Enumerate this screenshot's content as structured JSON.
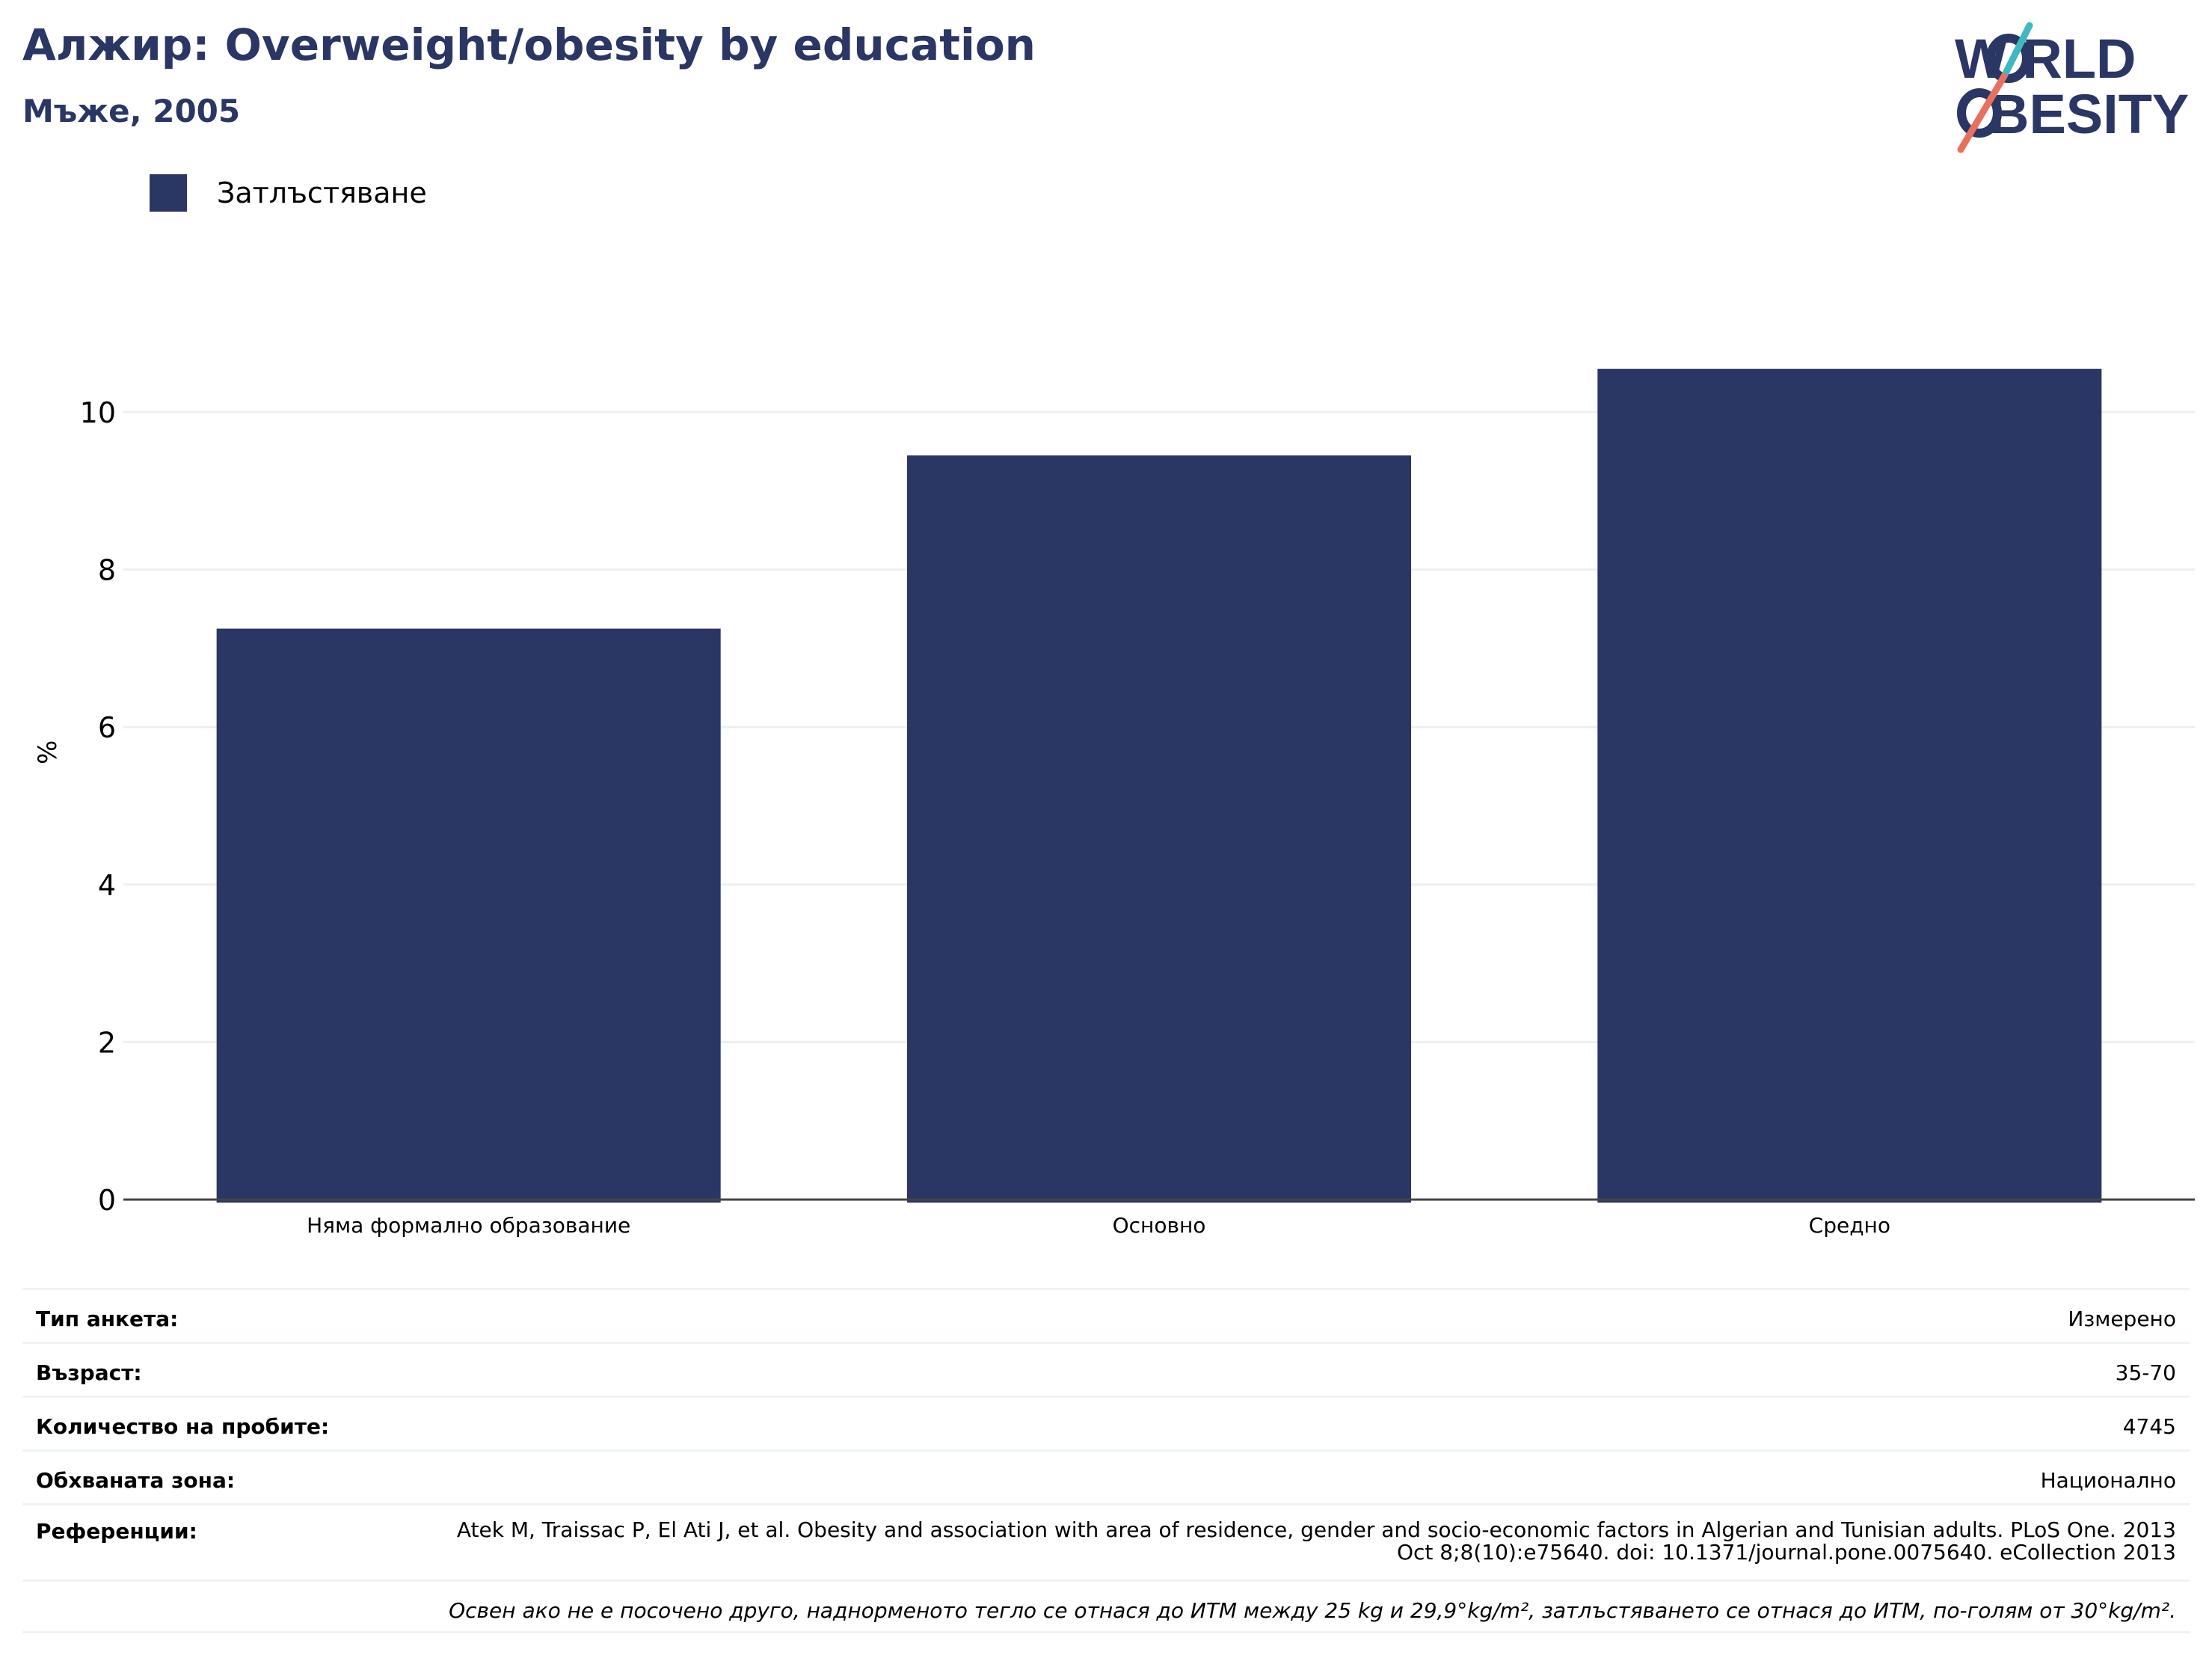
{
  "header": {
    "title": "Алжир: Overweight/obesity by education",
    "subtitle": "Мъже, 2005",
    "logo_text_top": "W RLD",
    "logo_text_bottom": "BESITY"
  },
  "colors": {
    "bar": "#2a3663",
    "title": "#2a3663",
    "logo_teal": "#3fb8c0",
    "logo_coral": "#e8705f"
  },
  "chart_data": {
    "type": "bar",
    "categories": [
      "Няма формално образование",
      "Основно",
      "Средно"
    ],
    "series": [
      {
        "name": "Затлъстяване",
        "values": [
          7.25,
          9.45,
          10.55
        ]
      }
    ],
    "ylabel": "%",
    "ylim": [
      0,
      11.5
    ],
    "yticks": [
      0,
      2,
      4,
      6,
      8,
      10
    ],
    "grid": true,
    "legend_position": "top-left"
  },
  "meta": {
    "survey_type": {
      "label": "Тип анкета:",
      "value": "Измерено"
    },
    "age": {
      "label": "Възраст:",
      "value": "35-70"
    },
    "sample_size": {
      "label": "Количество на пробите:",
      "value": "4745"
    },
    "area": {
      "label": "Обхваната зона:",
      "value": "Национално"
    },
    "references": {
      "label": "Референции:",
      "value": "Atek M, Traissac P, El Ati J, et al. Obesity and association with area of residence, gender and socio-economic factors in Algerian and Tunisian adults. PLoS One. 2013 Oct 8;8(10):e75640. doi: 10.1371/journal.pone.0075640. eCollection 2013"
    },
    "note": "Освен ако не е посочено друго, наднорменото тегло се отнася до ИТМ между 25 kg и 29,9°kg/m², затлъстяването се отнася до ИТМ, по-голям от 30°kg/m²."
  }
}
